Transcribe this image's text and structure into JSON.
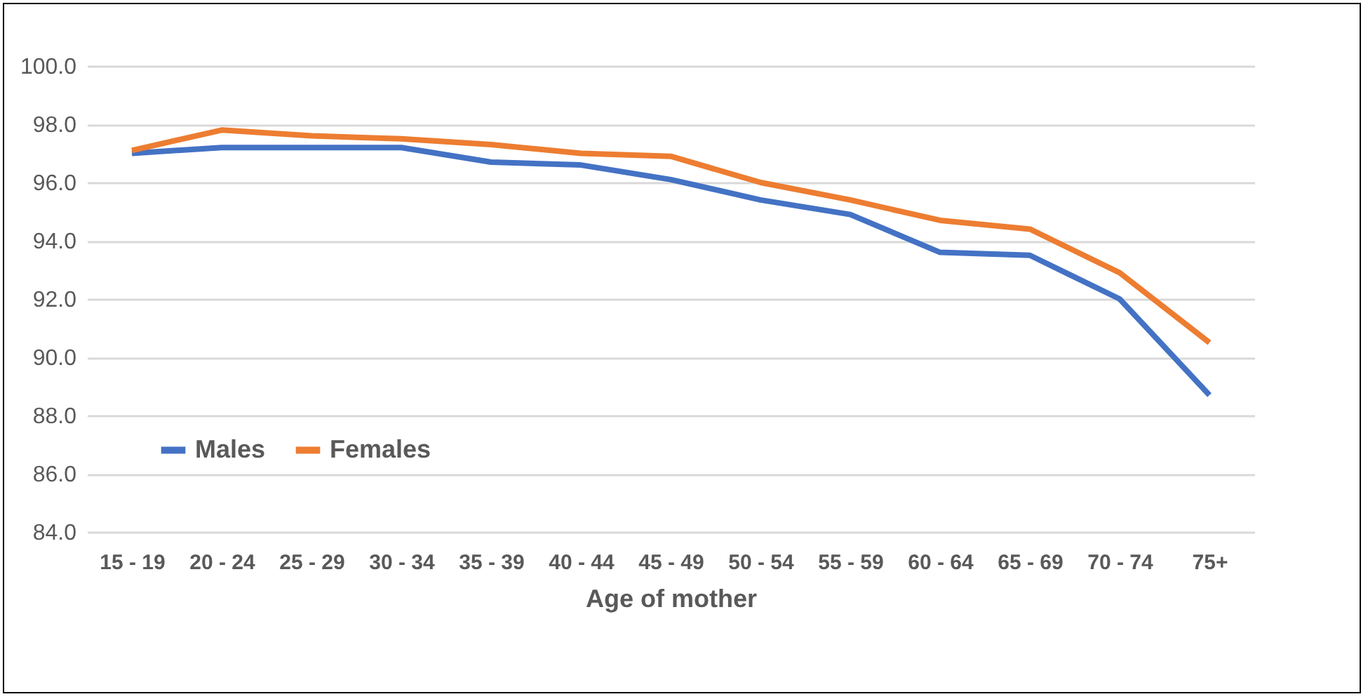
{
  "chart_data": {
    "type": "line",
    "xlabel": "Age of mother",
    "categories": [
      "15 - 19",
      "20 - 24",
      "25 - 29",
      "30 - 34",
      "35 - 39",
      "40 - 44",
      "45 - 49",
      "50 - 54",
      "55 - 59",
      "60 - 64",
      "65 - 69",
      "70 - 74",
      "75+"
    ],
    "series": [
      {
        "name": "Males",
        "color": "#4472c4",
        "values": [
          97.0,
          97.2,
          97.2,
          97.2,
          96.7,
          96.6,
          96.1,
          95.4,
          94.9,
          93.6,
          93.5,
          92.0,
          88.7
        ]
      },
      {
        "name": "Females",
        "color": "#ed7d31",
        "values": [
          97.1,
          97.8,
          97.6,
          97.5,
          97.3,
          97.0,
          96.9,
          96.0,
          95.4,
          94.7,
          94.4,
          92.9,
          90.5
        ]
      }
    ],
    "ylim": [
      84,
      100
    ],
    "yticks": [
      {
        "value": 84,
        "label": "84.0"
      },
      {
        "value": 86,
        "label": "86.0"
      },
      {
        "value": 88,
        "label": "88.0"
      },
      {
        "value": 90,
        "label": "90.0"
      },
      {
        "value": 92,
        "label": "92.0"
      },
      {
        "value": 94,
        "label": "94.0"
      },
      {
        "value": 96,
        "label": "96.0"
      },
      {
        "value": 98,
        "label": "98.0"
      },
      {
        "value": 100,
        "label": "100.0"
      }
    ],
    "grid": "y",
    "legend": "bottom left",
    "marker": "none",
    "line_style": "solid"
  }
}
